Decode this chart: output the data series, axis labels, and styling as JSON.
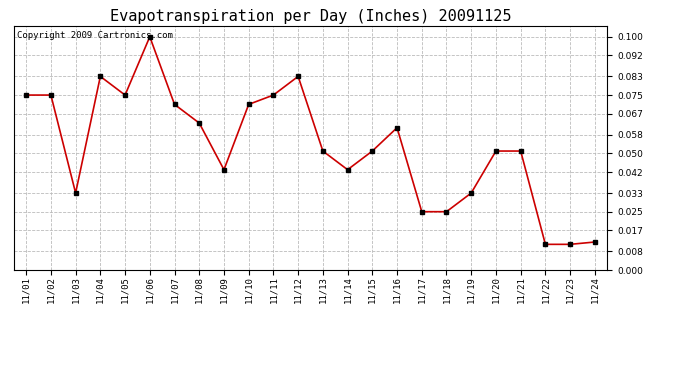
{
  "title": "Evapotranspiration per Day (Inches) 20091125",
  "copyright_text": "Copyright 2009 Cartronics.com",
  "dates": [
    "11/01",
    "11/02",
    "11/03",
    "11/04",
    "11/05",
    "11/06",
    "11/07",
    "11/08",
    "11/09",
    "11/10",
    "11/11",
    "11/12",
    "11/13",
    "11/14",
    "11/15",
    "11/16",
    "11/17",
    "11/18",
    "11/19",
    "11/20",
    "11/21",
    "11/22",
    "11/23",
    "11/24"
  ],
  "values": [
    0.075,
    0.075,
    0.033,
    0.083,
    0.075,
    0.1,
    0.071,
    0.063,
    0.043,
    0.071,
    0.075,
    0.083,
    0.051,
    0.043,
    0.051,
    0.061,
    0.025,
    0.025,
    0.033,
    0.051,
    0.051,
    0.011,
    0.011,
    0.012
  ],
  "line_color": "#cc0000",
  "marker_color": "#000000",
  "bg_color": "#ffffff",
  "plot_bg_color": "#ffffff",
  "grid_color": "#bbbbbb",
  "ylim": [
    0.0,
    0.1045
  ],
  "yticks": [
    0.0,
    0.008,
    0.017,
    0.025,
    0.033,
    0.042,
    0.05,
    0.058,
    0.067,
    0.075,
    0.083,
    0.092,
    0.1
  ],
  "title_fontsize": 11,
  "tick_fontsize": 6.5,
  "copyright_fontsize": 6.5
}
